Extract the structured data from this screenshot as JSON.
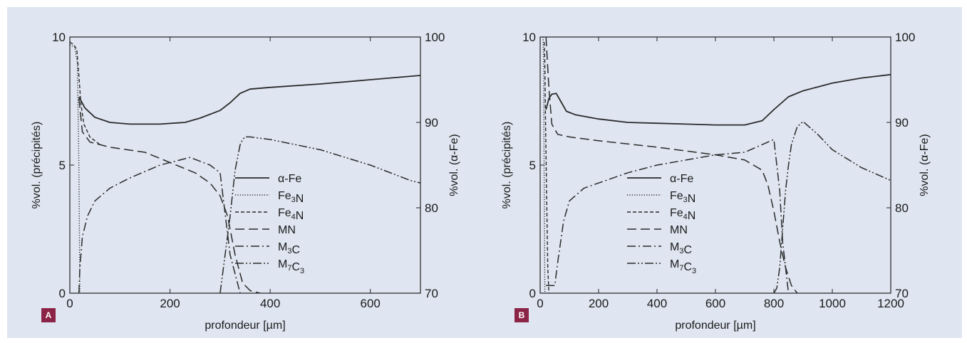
{
  "chart_data": [
    {
      "panel_label": "A",
      "type": "line",
      "xlabel": "profondeur [µm]",
      "ylabel_left": "%vol. (précipités)",
      "ylabel_right": "%vol. (α-Fe)",
      "xlim": [
        0,
        700
      ],
      "ylim_left": [
        0,
        10
      ],
      "ylim_right": [
        70,
        100
      ],
      "x_ticks": [
        "0",
        "200",
        "400",
        "600"
      ],
      "y_ticks_left": [
        "0",
        "5",
        "10"
      ],
      "y_ticks_right": [
        "70",
        "80",
        "90",
        "100"
      ],
      "legend": [
        "α-Fe",
        "Fe3N",
        "Fe4N",
        "MN",
        "M3C",
        "M7C3"
      ],
      "series": [
        {
          "name": "α-Fe",
          "axis": "right",
          "style": "solid",
          "x": [
            18,
            30,
            50,
            80,
            120,
            180,
            230,
            260,
            300,
            320,
            340,
            360,
            400,
            500,
            600,
            700
          ],
          "y": [
            93,
            91.7,
            90.6,
            90.0,
            89.8,
            89.8,
            90.0,
            90.5,
            91.4,
            92.3,
            93.4,
            93.9,
            94.1,
            94.5,
            95.0,
            95.5
          ]
        },
        {
          "name": "Fe3N",
          "axis": "left",
          "style": "dotted",
          "x": [
            0,
            10,
            15,
            18,
            20
          ],
          "y": [
            9.7,
            9.6,
            9.0,
            5,
            0
          ]
        },
        {
          "name": "Fe4N",
          "axis": "left",
          "style": "dashed",
          "x": [
            0,
            8,
            14,
            18,
            22,
            28,
            40,
            60
          ],
          "y": [
            9.8,
            9.7,
            9.5,
            8.5,
            7.4,
            6.6,
            6.1,
            5.8
          ]
        },
        {
          "name": "MN",
          "axis": "left",
          "style": "longdash",
          "x": [
            18,
            25,
            40,
            80,
            150,
            200,
            250,
            280,
            300,
            315,
            330,
            345,
            360,
            380
          ],
          "y": [
            7.6,
            6.3,
            5.9,
            5.7,
            5.5,
            5.1,
            4.7,
            4.3,
            3.8,
            3.0,
            1.5,
            0.4,
            0.1,
            0
          ]
        },
        {
          "name": "M3C",
          "axis": "left",
          "style": "dashdot",
          "x": [
            18,
            20,
            25,
            35,
            50,
            80,
            120,
            180,
            240,
            280,
            300,
            320,
            340
          ],
          "y": [
            0,
            1.0,
            2.2,
            3.0,
            3.6,
            4.1,
            4.5,
            5.0,
            5.3,
            5.0,
            4.7,
            1.5,
            0
          ]
        },
        {
          "name": "M7C3",
          "axis": "left",
          "style": "dashdotdot",
          "x": [
            300,
            310,
            320,
            330,
            340,
            345,
            350,
            360,
            400,
            500,
            600,
            680,
            700
          ],
          "y": [
            0,
            1.5,
            3.0,
            4.8,
            5.8,
            6.0,
            6.1,
            6.1,
            6.0,
            5.6,
            5.0,
            4.4,
            4.3
          ]
        }
      ]
    },
    {
      "panel_label": "B",
      "type": "line",
      "xlabel": "profondeur [µm]",
      "ylabel_left": "%vol. (précipités)",
      "ylabel_right": "%vol. (α-Fe)",
      "xlim": [
        0,
        1200
      ],
      "ylim_left": [
        0,
        10
      ],
      "ylim_right": [
        70,
        100
      ],
      "x_ticks": [
        "0",
        "200",
        "400",
        "600",
        "800",
        "1000",
        "1200"
      ],
      "y_ticks_left": [
        "0",
        "5",
        "10"
      ],
      "y_ticks_right": [
        "70",
        "80",
        "90",
        "100"
      ],
      "legend": [
        "α-Fe",
        "Fe3N",
        "Fe4N",
        "MN",
        "M3C",
        "M7C3"
      ],
      "series": [
        {
          "name": "α-Fe",
          "axis": "right",
          "style": "solid",
          "x": [
            20,
            30,
            40,
            55,
            70,
            90,
            120,
            200,
            300,
            400,
            500,
            600,
            700,
            760,
            800,
            850,
            900,
            1000,
            1100,
            1200
          ],
          "y": [
            91.5,
            92.8,
            93.3,
            93.4,
            92.5,
            91.3,
            90.9,
            90.4,
            90.0,
            89.9,
            89.8,
            89.7,
            89.7,
            90.2,
            91.5,
            93.0,
            93.7,
            94.6,
            95.2,
            95.6
          ]
        },
        {
          "name": "Fe3N",
          "axis": "left",
          "style": "dotted",
          "x": [
            10,
            12,
            14,
            16
          ],
          "y": [
            10,
            9.0,
            4.0,
            0
          ]
        },
        {
          "name": "Fe4N",
          "axis": "left",
          "style": "dashed",
          "x": [
            14,
            16,
            18,
            22,
            26,
            30
          ],
          "y": [
            9.8,
            9.0,
            7.0,
            4.0,
            1.0,
            0
          ]
        },
        {
          "name": "MN",
          "axis": "left",
          "style": "longdash",
          "x": [
            20,
            30,
            40,
            60,
            100,
            200,
            400,
            600,
            700,
            760,
            780,
            800,
            820,
            840,
            860,
            880
          ],
          "y": [
            10,
            8.0,
            6.6,
            6.2,
            6.1,
            5.95,
            5.7,
            5.4,
            5.2,
            4.8,
            4.2,
            3.2,
            2.0,
            1.0,
            0.3,
            0
          ]
        },
        {
          "name": "M3C",
          "axis": "left",
          "style": "dashdot",
          "x": [
            20,
            50,
            60,
            80,
            100,
            150,
            200,
            300,
            400,
            500,
            600,
            700,
            800,
            820,
            830,
            850
          ],
          "y": [
            0.3,
            0.3,
            1.2,
            2.8,
            3.6,
            4.1,
            4.3,
            4.7,
            5.0,
            5.2,
            5.4,
            5.5,
            6.0,
            4.0,
            2.0,
            0
          ]
        },
        {
          "name": "M7C3",
          "axis": "left",
          "style": "dashdotdot",
          "x": [
            800,
            810,
            820,
            830,
            840,
            850,
            860,
            880,
            900,
            950,
            1000,
            1100,
            1200
          ],
          "y": [
            0,
            0.2,
            1.0,
            2.5,
            4.0,
            5.0,
            5.8,
            6.5,
            6.7,
            6.2,
            5.6,
            4.9,
            4.4
          ]
        }
      ]
    }
  ]
}
